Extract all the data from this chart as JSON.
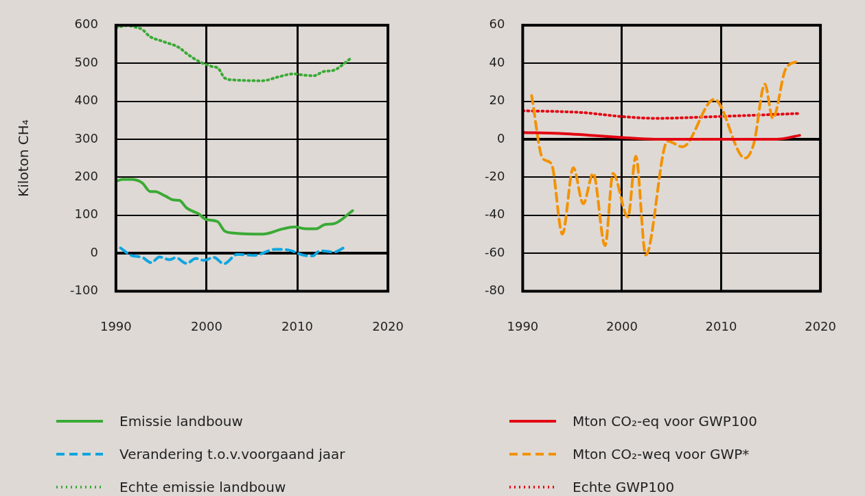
{
  "chart_data": [
    {
      "type": "line",
      "ylabel": "Kiloton CH₄",
      "xlim": [
        1990,
        2020
      ],
      "xticks": [
        1990,
        2000,
        2010,
        2020
      ],
      "ylim": [
        -100,
        600
      ],
      "yticks": [
        -100,
        0,
        100,
        200,
        300,
        400,
        500,
        600
      ],
      "grid": true,
      "legend": "bottom",
      "marker": "none",
      "ref_lines": [
        {
          "axis": "y",
          "value": 0,
          "color": "#000000"
        }
      ],
      "series": [
        {
          "name": "Emissie landbouw",
          "color": "#3aaa35",
          "line_style": "solid",
          "x": [
            1990,
            1990.7,
            1991.7,
            1992.9,
            1993.8,
            1994.3,
            1995.4,
            1996.4,
            1997,
            1997.8,
            1998.5,
            1999.1,
            1999.9,
            2001.2,
            2002,
            2003,
            2006.2,
            2008.4,
            2009.7,
            2011,
            2012.1,
            2013,
            2014.1,
            2016.1
          ],
          "values": [
            189,
            194,
            194,
            185,
            162,
            162,
            151,
            140,
            139,
            119,
            110,
            104,
            89,
            83,
            58,
            53,
            50,
            64,
            69,
            64,
            64,
            75,
            78,
            112
          ]
        },
        {
          "name": "Verandering t.o.v.voorgaand jaar",
          "color": "#0ea5e0",
          "line_style": "dashed",
          "x": [
            1990.5,
            1991.7,
            1992.9,
            1993.9,
            1994.8,
            1995.9,
            1996.6,
            1997.8,
            1998.8,
            1999.7,
            2000.8,
            2001.9,
            2003.4,
            2005.2,
            2007.6,
            2009.1,
            2010.8,
            2011.7,
            2012.5,
            2014.1,
            2015.1
          ],
          "values": [
            14,
            -6,
            -11,
            -25,
            -10,
            -17,
            -12,
            -27,
            -14,
            -19,
            -11,
            -28,
            -3,
            -6,
            10,
            8,
            -6,
            -7,
            6,
            3,
            14
          ]
        },
        {
          "name": "Echte emissie landbouw",
          "color": "#3aaa35",
          "line_style": "dotted",
          "x": [
            1990,
            1991.2,
            1992.3,
            1992.9,
            1993.7,
            1995.1,
            1996.9,
            1998,
            1999.3,
            2000.5,
            2001.3,
            2002,
            2003,
            2006.2,
            2007.9,
            2009.6,
            2010.6,
            2011.8,
            2012.9,
            2014.1,
            2015.2,
            2015.9
          ],
          "values": [
            594,
            599,
            594,
            589,
            571,
            558,
            542,
            522,
            503,
            492,
            486,
            461,
            456,
            454,
            464,
            472,
            469,
            467,
            478,
            482,
            500,
            513
          ]
        }
      ]
    },
    {
      "type": "line",
      "xlim": [
        1990,
        2020
      ],
      "xticks": [
        1990,
        2000,
        2010,
        2020
      ],
      "ylim": [
        -80,
        60
      ],
      "yticks": [
        -80,
        -60,
        -40,
        -20,
        0,
        20,
        40,
        60
      ],
      "grid": true,
      "legend": "bottom",
      "marker": "none",
      "ref_lines": [
        {
          "axis": "y",
          "value": 0,
          "color": "#000000"
        }
      ],
      "series": [
        {
          "name": "Mton CO₂-eq voor GWP100",
          "color": "#e30613",
          "line_style": "solid",
          "x": [
            1990,
            1993.7,
            1999.8,
            2003.4,
            2015.6,
            2017.9
          ],
          "values": [
            3.5,
            3,
            1,
            0,
            0,
            2
          ]
        },
        {
          "name": "Mton CO₂-weq voor GWP*",
          "color": "#f39200",
          "line_style": "dashed",
          "x": [
            1990.9,
            1992,
            1992.9,
            1994,
            1995.1,
            1996.1,
            1997.1,
            1998.3,
            1999.1,
            2000.6,
            2001.4,
            2002.4,
            2004.6,
            2006.1,
            2009.3,
            2012.4,
            2013.3,
            2014.4,
            2015.2,
            2016.5,
            2017.7
          ],
          "values": [
            23,
            -10,
            -13,
            -50,
            -15,
            -34,
            -18,
            -56,
            -18,
            -41,
            -9,
            -61,
            -1,
            -4,
            21,
            -10,
            -2,
            29,
            11,
            37,
            41
          ]
        },
        {
          "name": "Echte GWP100",
          "color": "#e30613",
          "line_style": "dotted",
          "x": [
            1990,
            1996.1,
            1999.8,
            2003.4,
            2009.9,
            2017.7
          ],
          "values": [
            15,
            14,
            12,
            11,
            12,
            13.5
          ]
        }
      ]
    }
  ]
}
